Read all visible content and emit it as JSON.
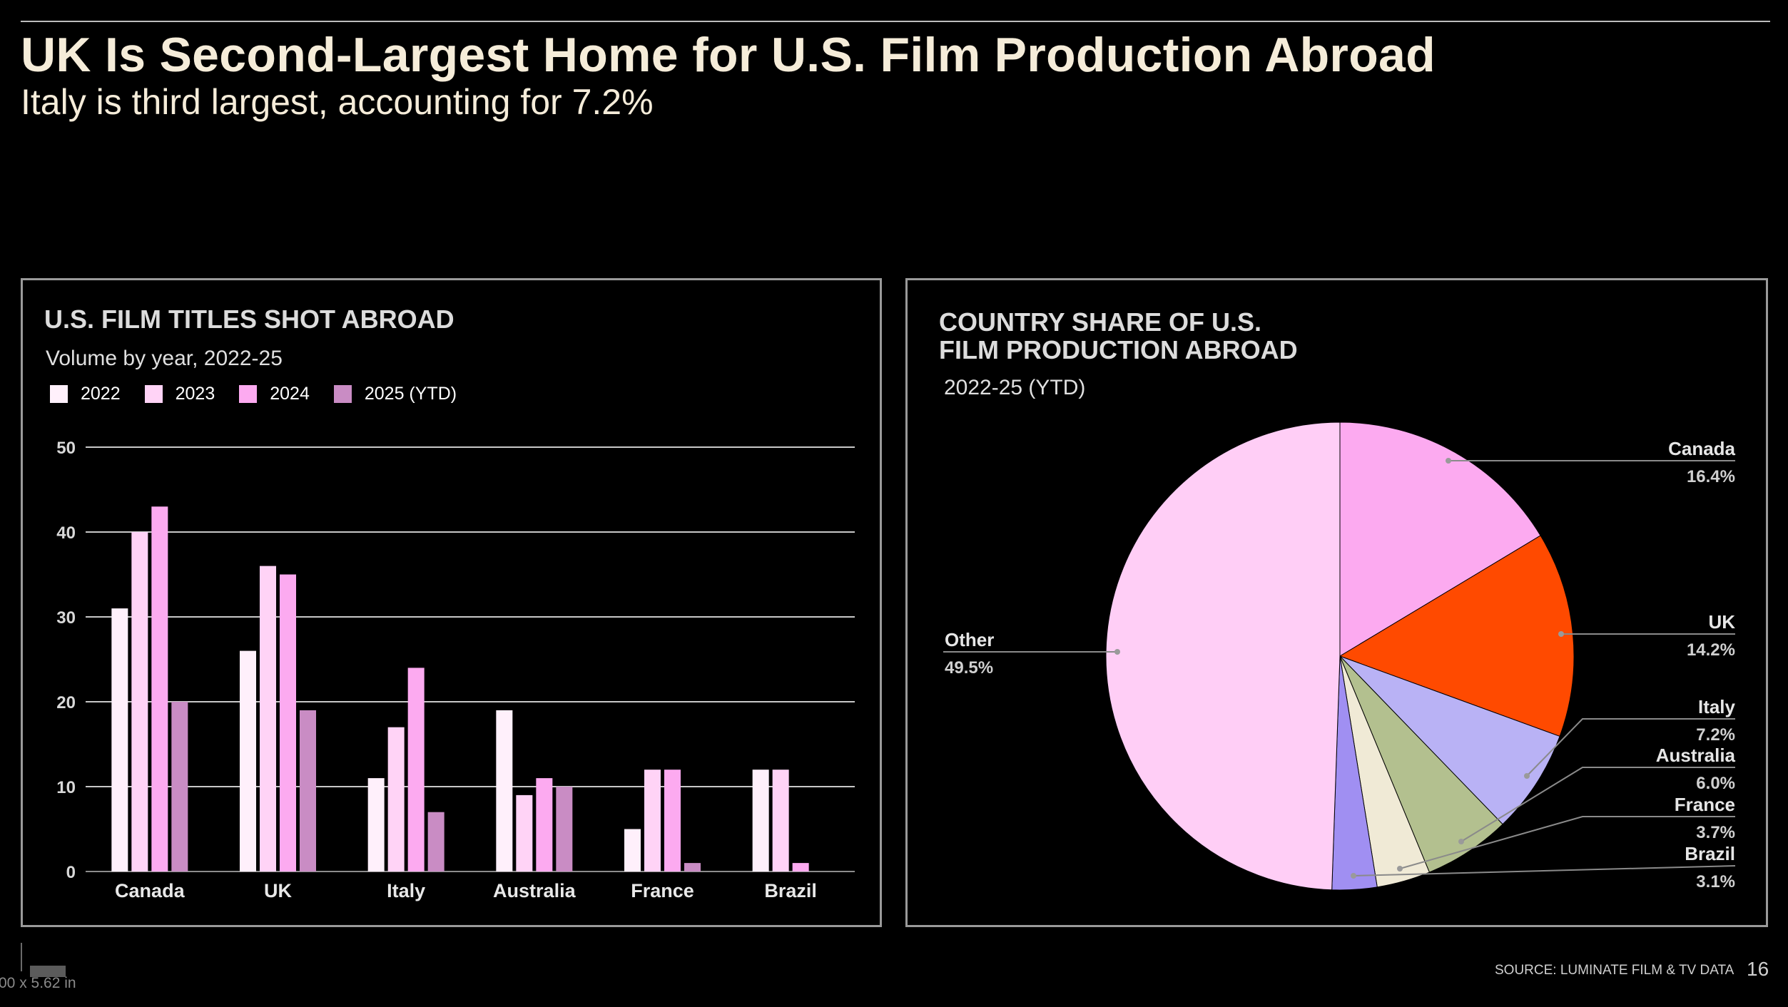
{
  "slide": {
    "title": "UK Is Second-Largest Home for U.S. Film Production Abroad",
    "subtitle": "Italy is third largest, accounting for 7.2%",
    "source": "SOURCE: LUMINATE FILM & TV DATA",
    "page_number": "16",
    "dimension_label": "00 x 5.62 in"
  },
  "left_panel": {
    "title": "U.S. FILM TITLES SHOT ABROAD",
    "subtitle": "Volume by year, 2022-25"
  },
  "right_panel": {
    "title_line1": "COUNTRY SHARE OF U.S.",
    "title_line2": "FILM PRODUCTION ABROAD",
    "subtitle": "2022-25 (YTD)"
  },
  "chart_data": [
    {
      "type": "bar",
      "title": "U.S. FILM TITLES SHOT ABROAD",
      "subtitle": "Volume by year, 2022-25",
      "categories": [
        "Canada",
        "UK",
        "Italy",
        "Australia",
        "France",
        "Brazil"
      ],
      "series": [
        {
          "name": "2022",
          "color": "#fff0fb",
          "values": [
            31,
            26,
            11,
            19,
            5,
            12
          ]
        },
        {
          "name": "2023",
          "color": "#ffd3f6",
          "values": [
            40,
            36,
            17,
            9,
            12,
            12
          ]
        },
        {
          "name": "2024",
          "color": "#fcaaf0",
          "values": [
            43,
            35,
            24,
            11,
            12,
            1
          ]
        },
        {
          "name": "2025 (YTD)",
          "color": "#c98cc4",
          "values": [
            20,
            19,
            7,
            10,
            1,
            0
          ]
        }
      ],
      "yticks": [
        0,
        10,
        20,
        30,
        40,
        50
      ],
      "ylim": [
        0,
        50
      ],
      "grid": true,
      "legend": "top-left"
    },
    {
      "type": "pie",
      "title": "COUNTRY SHARE OF U.S. FILM PRODUCTION ABROAD",
      "subtitle": "2022-25 (YTD)",
      "slices": [
        {
          "label": "Canada",
          "value": 16.4,
          "value_label": "16.4%",
          "color": "#fcaaf0"
        },
        {
          "label": "UK",
          "value": 14.2,
          "value_label": "14.2%",
          "color": "#ff4a00"
        },
        {
          "label": "Italy",
          "value": 7.2,
          "value_label": "7.2%",
          "color": "#b9b2f5"
        },
        {
          "label": "Australia",
          "value": 6.0,
          "value_label": "6.0%",
          "color": "#b3c08f"
        },
        {
          "label": "France",
          "value": 3.7,
          "value_label": "3.7%",
          "color": "#f0ead6"
        },
        {
          "label": "Brazil",
          "value": 3.1,
          "value_label": "3.1%",
          "color": "#a08ff2"
        },
        {
          "label": "Other",
          "value": 49.5,
          "value_label": "49.5%",
          "color": "#ffcef6"
        }
      ],
      "start_angle": "12 o'clock",
      "direction": "clockwise"
    }
  ]
}
